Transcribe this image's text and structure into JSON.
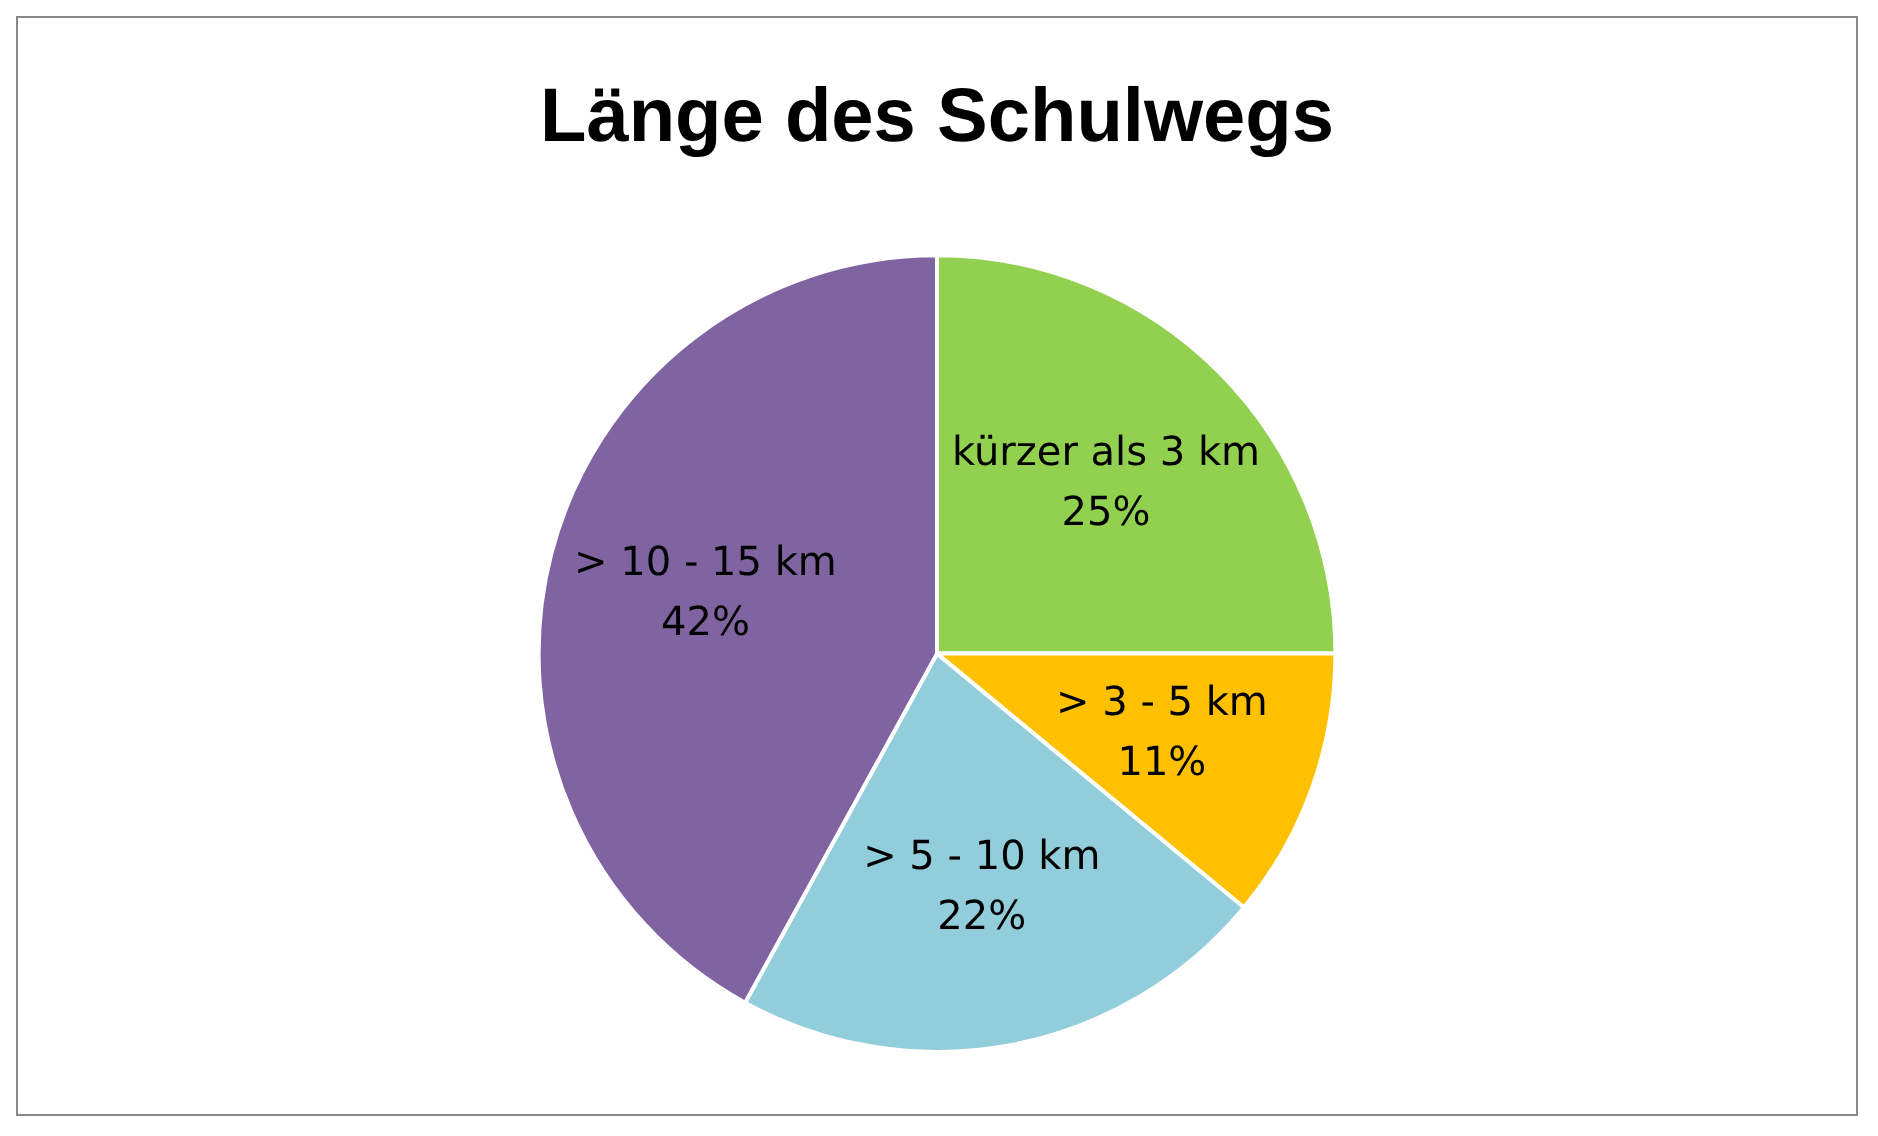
{
  "chart_data": {
    "type": "pie",
    "title": "Länge des Schulwegs",
    "categories": [
      "kürzer als 3 km",
      "> 3 - 5 km",
      "> 5 - 10 km",
      "> 10 - 15 km"
    ],
    "values": [
      25,
      11,
      22,
      42
    ],
    "colors": [
      "#92d050",
      "#ffc000",
      "#92cddc",
      "#8064a2"
    ],
    "value_labels": [
      "25%",
      "11%",
      "22%",
      "42%"
    ],
    "legend": false
  }
}
